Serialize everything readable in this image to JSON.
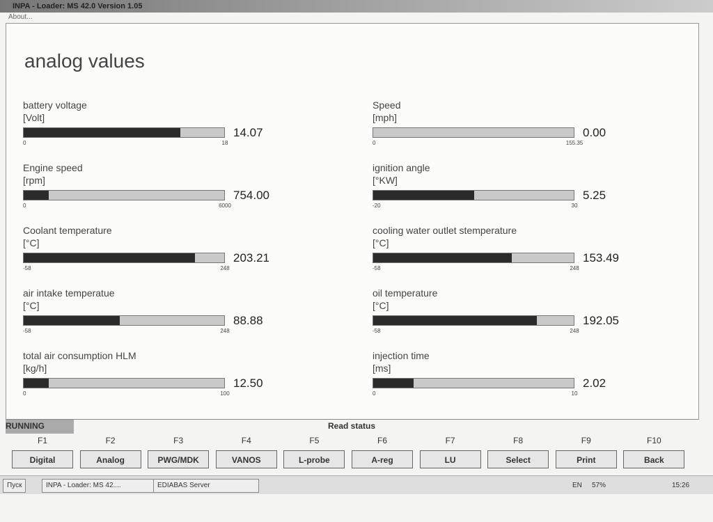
{
  "window": {
    "title": "INPA - Loader: MS 42.0 Version 1.05",
    "menu": "About..."
  },
  "heading": "analog values",
  "gauges": [
    {
      "label": "battery voltage",
      "unit": "[Volt]",
      "min": 0,
      "max": 18,
      "value": 14.07
    },
    {
      "label": "Speed",
      "unit": "[mph]",
      "min": 0,
      "max": 155.35,
      "value": 0,
      "value_label": "0.00"
    },
    {
      "label": "Engine speed",
      "unit": "[rpm]",
      "min": 0,
      "max": 6000,
      "value": 754,
      "value_label": "754.00"
    },
    {
      "label": "ignition angle",
      "unit": "[°KW]",
      "min": -20,
      "max": 30,
      "value": 5.25
    },
    {
      "label": "Coolant temperature",
      "unit": "[°C]",
      "min": -58,
      "max": 248,
      "value": 203.21
    },
    {
      "label": "cooling water outlet stemperature",
      "unit": "[°C]",
      "min": -58,
      "max": 248,
      "value": 153.49
    },
    {
      "label": "air intake temperatue",
      "unit": "[°C]",
      "min": -58,
      "max": 248,
      "value": 88.88
    },
    {
      "label": "oil temperature",
      "unit": "[°C]",
      "min": -58,
      "max": 248,
      "value": 192.05
    },
    {
      "label": "total air consumption HLM",
      "unit": "[kg/h]",
      "min": 0,
      "max": 100,
      "value": 12.5,
      "value_label": "12.50"
    },
    {
      "label": "injection time",
      "unit": "[ms]",
      "min": 0,
      "max": 10,
      "value": 2.02
    }
  ],
  "status": {
    "state": "RUNNING",
    "message": "Read status"
  },
  "function_keys": [
    {
      "key": "F1",
      "label": "Digital"
    },
    {
      "key": "F2",
      "label": "Analog"
    },
    {
      "key": "F3",
      "label": "PWG/MDK"
    },
    {
      "key": "F4",
      "label": "VANOS"
    },
    {
      "key": "F5",
      "label": "L-probe"
    },
    {
      "key": "F6",
      "label": "A-reg"
    },
    {
      "key": "F7",
      "label": "LU"
    },
    {
      "key": "F8",
      "label": "Select"
    },
    {
      "key": "F9",
      "label": "Print"
    },
    {
      "key": "F10",
      "label": "Back"
    }
  ],
  "taskbar": {
    "start": "Пуск",
    "tasks": [
      "INPA - Loader: MS 42....",
      "EDIABAS Server"
    ],
    "language": "EN",
    "battery": "57%",
    "clock": "15:26"
  }
}
